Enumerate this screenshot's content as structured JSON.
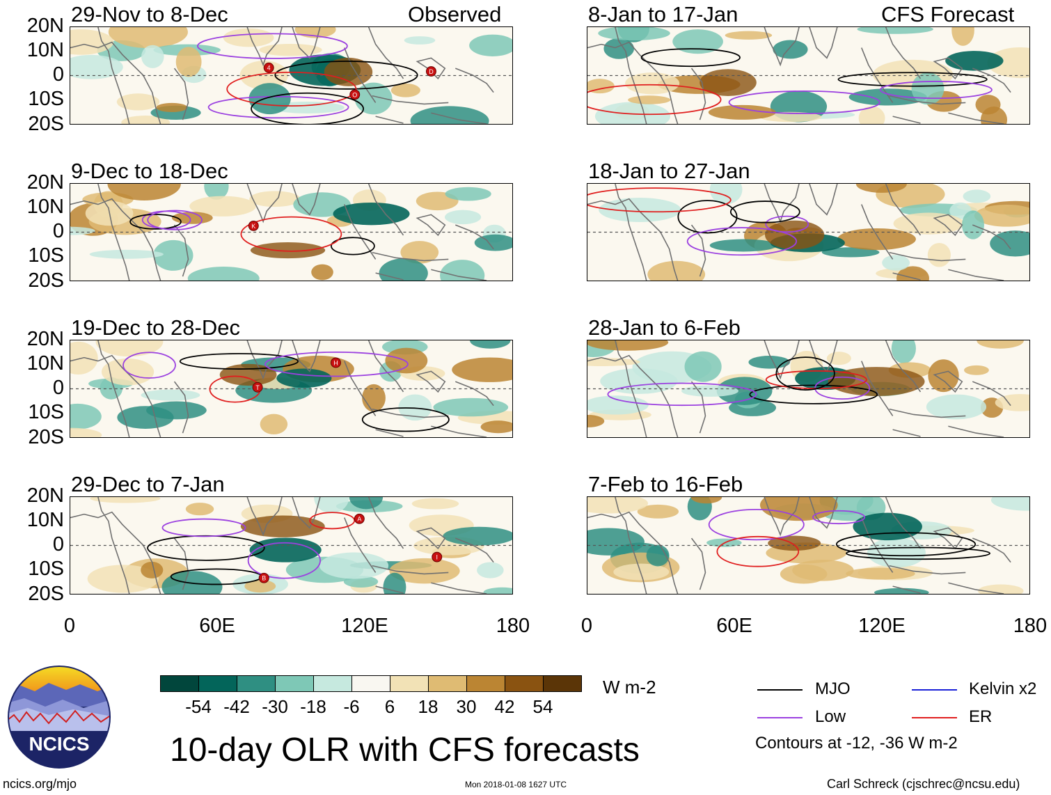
{
  "figure": {
    "main_title": "10-day OLR with CFS forecasts",
    "units": "W m-2",
    "url": "ncics.org/mjo",
    "timestamp": "Mon 2018-01-08 1627 UTC",
    "author": "Carl Schreck (cjschrec@ncsu.edu)",
    "logo_text": "NCICS",
    "contour_note": "Contours at -12, -36 W m-2"
  },
  "columns": {
    "left_tag": "Observed",
    "right_tag": "CFS Forecast"
  },
  "lat_ticks": [
    "20N",
    "10N",
    "0",
    "10S",
    "20S"
  ],
  "lon_ticks": [
    "0",
    "60E",
    "120E",
    "180"
  ],
  "panels_left": [
    {
      "title": "29-Nov to 8-Dec",
      "storms": [
        "4",
        "O",
        "D"
      ]
    },
    {
      "title": "9-Dec to 18-Dec",
      "storms": [
        "K"
      ]
    },
    {
      "title": "19-Dec to 28-Dec",
      "storms": [
        "T",
        "H"
      ]
    },
    {
      "title": "29-Dec to 7-Jan",
      "storms": [
        "B",
        "A",
        "I"
      ]
    }
  ],
  "panels_right": [
    {
      "title": "8-Jan to 17-Jan"
    },
    {
      "title": "18-Jan to 27-Jan"
    },
    {
      "title": "28-Jan to 6-Feb"
    },
    {
      "title": "7-Feb to 16-Feb"
    }
  ],
  "colorbar": {
    "labels": [
      "-54",
      "-42",
      "-30",
      "-18",
      "-6",
      "6",
      "18",
      "30",
      "42",
      "54"
    ],
    "colors": [
      "#01463c",
      "#03655a",
      "#2f8f82",
      "#7ec8b6",
      "#c6e9df",
      "#f9f7f1",
      "#f2e2b6",
      "#dfbb73",
      "#bb8533",
      "#8a5311",
      "#5b3507"
    ]
  },
  "legend": [
    {
      "label": "MJO",
      "color": "#000000"
    },
    {
      "label": "Kelvin x2",
      "color": "#1a20d8"
    },
    {
      "label": "Low",
      "color": "#9b40e0"
    },
    {
      "label": "ER",
      "color": "#e01e1e"
    }
  ]
}
